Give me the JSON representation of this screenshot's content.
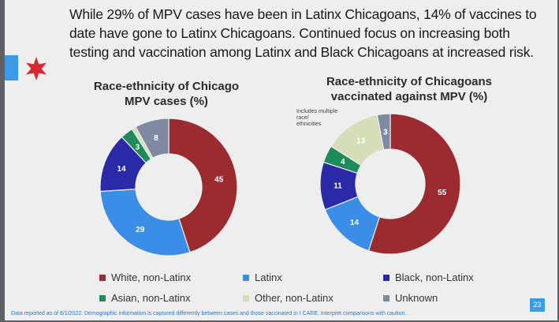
{
  "headline": [
    "While 29% of MPV cases have been in Latinx Chicagoans, 14% of vaccines to",
    "date have gone to Latinx Chicagoans. Continued focus on increasing both",
    "testing and vaccination among Latinx and Black Chicagoans at increased risk."
  ],
  "colors": {
    "white": "#9b2b2f",
    "latinx": "#3a8ee8",
    "black": "#2a2aa8",
    "asian": "#1f8a5a",
    "other": "#d6deb8",
    "unknown": "#7f8aa2",
    "accent": "#3d9be6",
    "star": "#d8282e"
  },
  "chart_data": [
    {
      "type": "pie",
      "title": "Race-ethnicity of Chicago MPV cases (%)",
      "categories": [
        "White, non-Latinx",
        "Latinx",
        "Black, non-Latinx",
        "Asian, non-Latinx",
        "Other, non-Latinx",
        "Unknown"
      ],
      "values": [
        45,
        29,
        14,
        3,
        1,
        8
      ],
      "labels": [
        "45",
        "29",
        "14",
        "3",
        "",
        "8"
      ]
    },
    {
      "type": "pie",
      "title": "Race-ethnicity of Chicagoans vaccinated against MPV (%)",
      "categories": [
        "White, non-Latinx",
        "Latinx",
        "Black, non-Latinx",
        "Asian, non-Latinx",
        "Other, non-Latinx",
        "Unknown"
      ],
      "values": [
        55,
        14,
        11,
        4,
        13,
        3
      ],
      "labels": [
        "55",
        "14",
        "11",
        "4",
        "13",
        "3"
      ],
      "annotation": "Includes multiple race/ ethnicities"
    }
  ],
  "titles": {
    "left_line1": "Race-ethnicity of Chicago",
    "left_line2": "MPV cases (%)",
    "right_line1": "Race-ethnicity of Chicagoans",
    "right_line2": "vaccinated against MPV (%)"
  },
  "note": {
    "line1": "Includes multiple",
    "line2": "race/",
    "line3": "ethnicities"
  },
  "legend": [
    "White, non-Latinx",
    "Latinx",
    "Black, non-Latinx",
    "Asian, non-Latinx",
    "Other, non-Latinx",
    "Unknown"
  ],
  "footer": "Data reported as of 8/1/2022. Demographic information is captured differently between cases and those vaccinated in I CARE. Interpret comparisons with caution.",
  "page_number": "23"
}
